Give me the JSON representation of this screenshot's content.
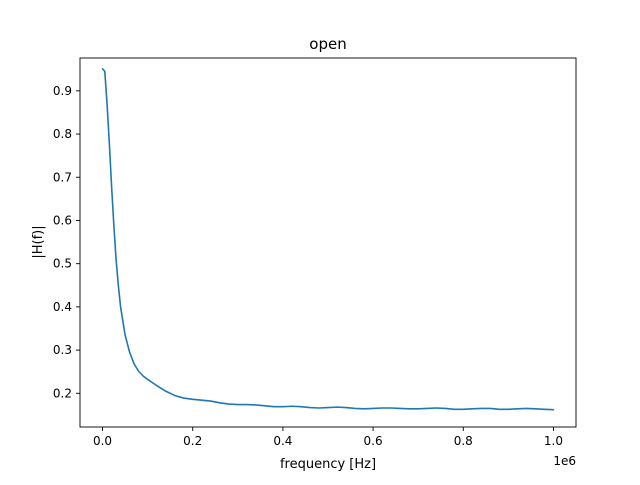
{
  "chart_data": {
    "type": "line",
    "title": "open",
    "xlabel": "frequency [Hz]",
    "ylabel": "|H(f)|",
    "x_offset_label": "1e6",
    "xlim": [
      -0.05,
      1.05
    ],
    "ylim": [
      0.122,
      0.976
    ],
    "xticks": [
      0.0,
      0.2,
      0.4,
      0.6,
      0.8,
      1.0
    ],
    "xtick_labels": [
      "0.0",
      "0.2",
      "0.4",
      "0.6",
      "0.8",
      "1.0"
    ],
    "yticks": [
      0.2,
      0.3,
      0.4,
      0.5,
      0.6,
      0.7,
      0.8,
      0.9
    ],
    "ytick_labels": [
      "0.2",
      "0.3",
      "0.4",
      "0.5",
      "0.6",
      "0.7",
      "0.8",
      "0.9"
    ],
    "grid": false,
    "series": [
      {
        "color": "#1f77b4",
        "x": [
          0.0,
          0.005,
          0.01,
          0.015,
          0.02,
          0.025,
          0.03,
          0.035,
          0.04,
          0.05,
          0.06,
          0.07,
          0.08,
          0.09,
          0.1,
          0.12,
          0.14,
          0.16,
          0.18,
          0.2,
          0.22,
          0.24,
          0.26,
          0.28,
          0.3,
          0.32,
          0.34,
          0.36,
          0.38,
          0.4,
          0.42,
          0.44,
          0.46,
          0.48,
          0.5,
          0.52,
          0.54,
          0.56,
          0.58,
          0.6,
          0.62,
          0.64,
          0.66,
          0.68,
          0.7,
          0.72,
          0.74,
          0.76,
          0.78,
          0.8,
          0.82,
          0.84,
          0.86,
          0.88,
          0.9,
          0.92,
          0.94,
          0.96,
          0.98,
          1.0
        ],
        "y": [
          0.951,
          0.945,
          0.87,
          0.78,
          0.68,
          0.59,
          0.51,
          0.45,
          0.4,
          0.335,
          0.295,
          0.268,
          0.251,
          0.24,
          0.232,
          0.218,
          0.205,
          0.195,
          0.189,
          0.186,
          0.184,
          0.182,
          0.178,
          0.175,
          0.174,
          0.174,
          0.173,
          0.171,
          0.169,
          0.169,
          0.17,
          0.169,
          0.167,
          0.166,
          0.167,
          0.168,
          0.167,
          0.165,
          0.164,
          0.165,
          0.166,
          0.166,
          0.165,
          0.164,
          0.164,
          0.165,
          0.166,
          0.165,
          0.163,
          0.163,
          0.164,
          0.165,
          0.165,
          0.163,
          0.163,
          0.164,
          0.165,
          0.164,
          0.163,
          0.162
        ]
      }
    ]
  },
  "colors": {
    "line": "#1f77b4",
    "axes": "#000000",
    "background": "#ffffff"
  }
}
